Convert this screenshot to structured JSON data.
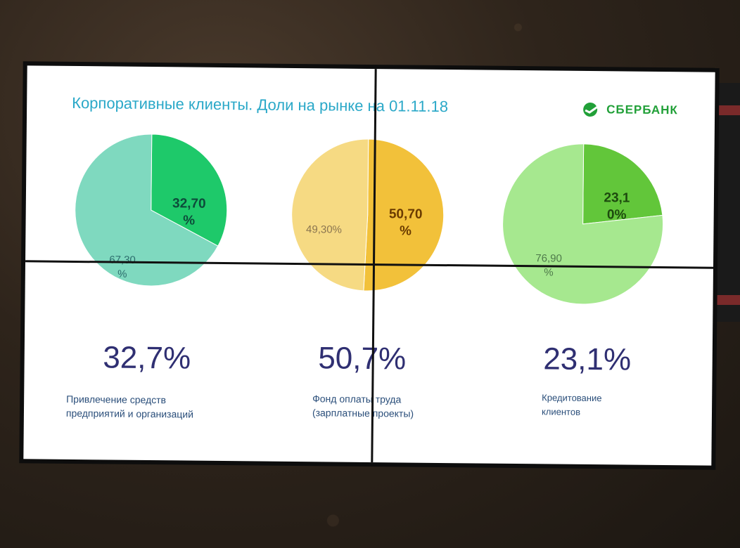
{
  "slide": {
    "title": "Корпоративные клиенты. Доли на рынке на 01.11.18",
    "logo_text": "СБЕРБАНК"
  },
  "chart_data": [
    {
      "type": "pie",
      "slices": [
        {
          "value": 32.7,
          "label": "32,70\n%",
          "color": "#1ec96a",
          "label_color": "#0d4b3a"
        },
        {
          "value": 67.3,
          "label": "67,30\n%",
          "color": "#7fd9bf",
          "label_color": "#2c6c6c"
        }
      ],
      "highlight": "32,7%",
      "caption": "Привлечение средств\nпредприятий и организаций"
    },
    {
      "type": "pie",
      "slices": [
        {
          "value": 50.7,
          "label": "50,70\n%",
          "color": "#f2c13a",
          "label_color": "#6a3b00"
        },
        {
          "value": 49.3,
          "label": "49,30%",
          "color": "#f6da83",
          "label_color": "#8a7550"
        }
      ],
      "highlight": "50,7%",
      "caption": "Фонд оплаты труда\n(зарплатные проекты)"
    },
    {
      "type": "pie",
      "slices": [
        {
          "value": 23.1,
          "label": "23,1\n0%",
          "color": "#62c63a",
          "label_color": "#1d4a0e"
        },
        {
          "value": 76.9,
          "label": "76,90\n%",
          "color": "#a6e88f",
          "label_color": "#4e7a4a"
        }
      ],
      "highlight": "23,1%",
      "caption": "Кредитование\nклиентов"
    }
  ]
}
